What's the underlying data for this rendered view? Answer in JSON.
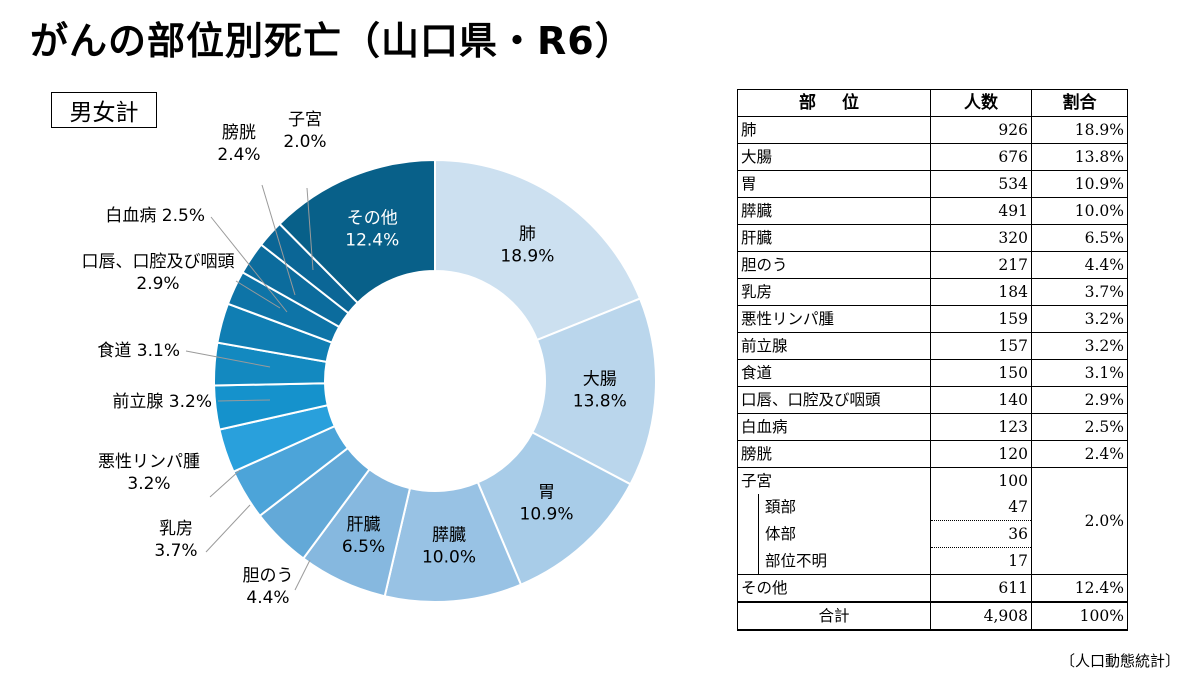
{
  "title": "がんの部位別死亡（山口県・R6）",
  "subset_label": "男女計",
  "source": "〔人口動態統計〕",
  "chart_data": {
    "type": "pie",
    "donut": true,
    "slices": [
      {
        "name": "肺",
        "value": 18.9,
        "color": "#cce0f0",
        "label_lines": [
          "肺",
          "18.9%"
        ],
        "label_color": "#000000"
      },
      {
        "name": "大腸",
        "value": 13.8,
        "color": "#bad6ec",
        "label_lines": [
          "大腸",
          "13.8%"
        ],
        "label_color": "#000000"
      },
      {
        "name": "胃",
        "value": 10.9,
        "color": "#a8cce8",
        "label_lines": [
          "胃",
          "10.9%"
        ],
        "label_color": "#000000"
      },
      {
        "name": "膵臓",
        "value": 10.0,
        "color": "#98c2e4",
        "label_lines": [
          "膵臓",
          "10.0%"
        ],
        "label_color": "#000000"
      },
      {
        "name": "肝臓",
        "value": 6.5,
        "color": "#86b8df",
        "label_lines": [
          "肝臓",
          "6.5%"
        ],
        "label_color": "#000000"
      },
      {
        "name": "胆のう",
        "value": 4.4,
        "color": "#63a9d8",
        "label_lines": [
          "胆のう",
          "4.4%"
        ],
        "label_color": "#000000"
      },
      {
        "name": "乳房",
        "value": 3.7,
        "color": "#4ca4d9",
        "label_lines": [
          "乳房",
          "3.7%"
        ],
        "label_color": "#000000"
      },
      {
        "name": "悪性リンパ腫",
        "value": 3.2,
        "color": "#29a0dc",
        "label_lines": [
          "悪性リンパ腫",
          "3.2%"
        ],
        "label_color": "#000000"
      },
      {
        "name": "前立腺",
        "value": 3.2,
        "color": "#1592cc",
        "label_lines": [
          "前立腺 3.2%"
        ],
        "label_color": "#000000"
      },
      {
        "name": "食道",
        "value": 3.1,
        "color": "#1389c0",
        "label_lines": [
          "食道 3.1%"
        ],
        "label_color": "#000000"
      },
      {
        "name": "口唇、口腔及び咽頭",
        "value": 2.9,
        "color": "#107eb3",
        "label_lines": [
          "口唇、口腔及び咽頭",
          "2.9%"
        ],
        "label_color": "#000000"
      },
      {
        "name": "白血病",
        "value": 2.5,
        "color": "#0e74a7",
        "label_lines": [
          "白血病 2.5%"
        ],
        "label_color": "#000000"
      },
      {
        "name": "膀胱",
        "value": 2.4,
        "color": "#0c6c9d",
        "label_lines": [
          "膀胱",
          "2.4%"
        ],
        "label_color": "#000000"
      },
      {
        "name": "子宮",
        "value": 2.0,
        "color": "#0b6696",
        "label_lines": [
          "子宮",
          "2.0%"
        ],
        "label_color": "#000000"
      },
      {
        "name": "その他",
        "value": 12.4,
        "color": "#086089",
        "label_lines": [
          "その他",
          "12.4%"
        ],
        "label_color": "#ffffff"
      }
    ]
  },
  "table": {
    "headers": [
      "部 位",
      "人数",
      "割合"
    ],
    "rows": [
      {
        "name": "肺",
        "count": "926",
        "pct": "18.9%"
      },
      {
        "name": "大腸",
        "count": "676",
        "pct": "13.8%"
      },
      {
        "name": "胃",
        "count": "534",
        "pct": "10.9%"
      },
      {
        "name": "膵臓",
        "count": "491",
        "pct": "10.0%"
      },
      {
        "name": "肝臓",
        "count": "320",
        "pct": "6.5%"
      },
      {
        "name": "胆のう",
        "count": "217",
        "pct": "4.4%"
      },
      {
        "name": "乳房",
        "count": "184",
        "pct": "3.7%"
      },
      {
        "name": "悪性リンパ腫",
        "count": "159",
        "pct": "3.2%"
      },
      {
        "name": "前立腺",
        "count": "157",
        "pct": "3.2%"
      },
      {
        "name": "食道",
        "count": "150",
        "pct": "3.1%"
      },
      {
        "name": "口唇、口腔及び咽頭",
        "count": "140",
        "pct": "2.9%"
      },
      {
        "name": "白血病",
        "count": "123",
        "pct": "2.5%"
      },
      {
        "name": "膀胱",
        "count": "120",
        "pct": "2.4%"
      }
    ],
    "uterus": {
      "name": "子宮",
      "count": "100",
      "pct": "2.0%",
      "subrows": [
        {
          "name": "頚部",
          "count": "47"
        },
        {
          "name": "体部",
          "count": "36"
        },
        {
          "name": "部位不明",
          "count": "17"
        }
      ]
    },
    "other": {
      "name": "その他",
      "count": "611",
      "pct": "12.4%"
    },
    "total": {
      "name": "合計",
      "count": "4,908",
      "pct": "100%"
    }
  }
}
